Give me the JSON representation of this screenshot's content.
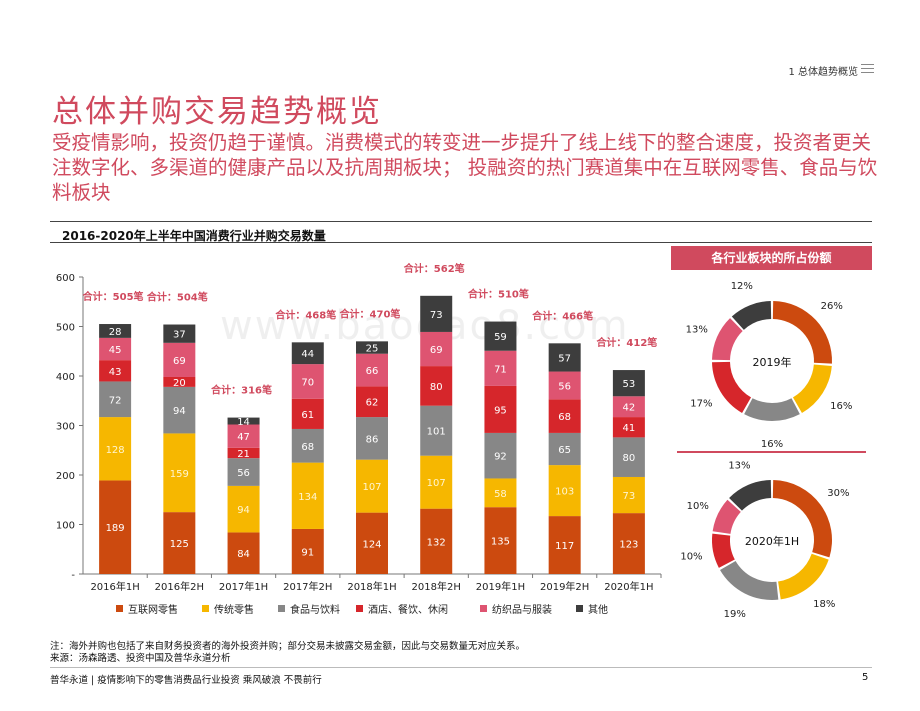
{
  "header": {
    "section_tag": "1 总体趋势概览",
    "title": "总体并购交易趋势概览",
    "subtitle": "受疫情影响，投资仍趋于谨慎。消费模式的转变进一步提升了线上线下的整合速度，投资者更关注数字化、多渠道的健康产品以及抗周期板块； 投融资的热门赛道集中在互联网零售、食品与饮料板块"
  },
  "colors": {
    "accent": "#d04a5e",
    "series": [
      "#cc4a0f",
      "#f6b700",
      "#878787",
      "#d6262b",
      "#de5471",
      "#3d3d3d"
    ]
  },
  "chart_data": [
    {
      "type": "bar",
      "stacked": true,
      "title": "2016-2020年上半年中国消费行业并购交易数量",
      "categories": [
        "2016年1H",
        "2016年2H",
        "2017年1H",
        "2017年2H",
        "2018年1H",
        "2018年2H",
        "2019年1H",
        "2019年2H",
        "2020年1H"
      ],
      "series": [
        {
          "name": "互联网零售",
          "values": [
            189,
            125,
            84,
            91,
            124,
            132,
            135,
            117,
            123
          ]
        },
        {
          "name": "传统零售",
          "values": [
            128,
            159,
            94,
            134,
            107,
            107,
            58,
            103,
            73
          ]
        },
        {
          "name": "食品与饮料",
          "values": [
            72,
            94,
            56,
            68,
            86,
            101,
            92,
            65,
            80
          ]
        },
        {
          "name": "酒店、餐饮、休闲",
          "values": [
            43,
            20,
            21,
            61,
            62,
            80,
            95,
            68,
            41
          ]
        },
        {
          "name": "纺织品与服装",
          "values": [
            45,
            69,
            47,
            70,
            66,
            69,
            71,
            56,
            42
          ]
        },
        {
          "name": "其他",
          "values": [
            28,
            37,
            14,
            44,
            25,
            73,
            59,
            57,
            53
          ]
        }
      ],
      "totals": [
        "合计：505笔",
        "合计：504笔",
        "合计：316笔",
        "合计：468笔",
        "合计：470笔",
        "合计：562笔",
        "合计：510笔",
        "合计：466笔",
        "合计：412笔"
      ],
      "ylim": [
        0,
        600
      ],
      "yticks": [
        "-",
        "100",
        "200",
        "300",
        "400",
        "500",
        "600"
      ],
      "legend_position": "bottom"
    },
    {
      "type": "pie",
      "donut": true,
      "title": "各行业板块的所占份额",
      "center_label": "2019年",
      "values": [
        26,
        16,
        16,
        17,
        13,
        12
      ],
      "labels": [
        "26%",
        "16%",
        "16%",
        "17%",
        "13%",
        "12%"
      ]
    },
    {
      "type": "pie",
      "donut": true,
      "center_label": "2020年1H",
      "values": [
        30,
        18,
        19,
        10,
        10,
        13
      ],
      "labels": [
        "30%",
        "18%",
        "19%",
        "10%",
        "10%",
        "13%"
      ]
    }
  ],
  "footnote": {
    "line1": "注：海外并购也包括了来自财务投资者的海外投资并购；部分交易未披露交易金额，因此与交易数量无对应关系。",
    "line2": "来源：汤森路透、投资中国及普华永道分析"
  },
  "footer": {
    "text": "普华永道 | 疫情影响下的零售消费品行业投资 乘风破浪 不畏前行",
    "page": "5"
  },
  "watermark": "www.baogao8.com"
}
